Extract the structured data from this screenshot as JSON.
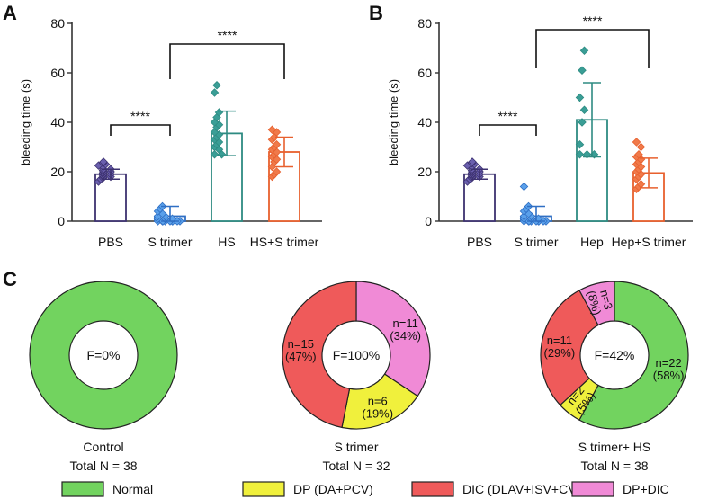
{
  "colors": {
    "axis": "#333333",
    "pbs": "#3d3270",
    "pbs_fill": "#6a5fae",
    "strimer": "#2f6fc4",
    "strimer_fill": "#5aa0ea",
    "hs": "#2e8b82",
    "hs_fill": "#3a9e96",
    "hsst": "#e8602e",
    "hsst_fill": "#f07a4a",
    "normal": "#72d35f",
    "dp": "#f0f03c",
    "dic": "#ef5a5a",
    "dpdic": "#f08ad6"
  },
  "chart_data": [
    {
      "panel": "A",
      "type": "bar",
      "ylabel": "bleeding time (s)",
      "ylim": [
        0,
        80
      ],
      "yticks": [
        0,
        20,
        40,
        60,
        80
      ],
      "categories": [
        "PBS",
        "S trimer",
        "HS",
        "HS+S trimer"
      ],
      "mean": [
        19,
        2,
        35.5,
        28
      ],
      "sd": [
        2,
        4,
        9,
        6
      ],
      "points": [
        [
          16,
          17,
          17.5,
          18,
          18,
          18.5,
          19,
          19,
          19.5,
          20,
          20,
          20.5,
          21,
          21,
          22,
          22.5,
          23,
          23.5,
          24
        ],
        [
          0,
          0,
          0,
          0,
          0,
          0,
          0,
          0,
          0,
          1,
          1,
          1,
          2,
          2,
          3,
          4,
          5,
          6
        ],
        [
          27,
          27,
          29,
          30,
          31,
          32,
          33,
          34,
          35,
          36,
          38,
          39,
          40,
          42,
          44,
          52,
          55
        ],
        [
          18,
          19,
          20,
          22,
          24,
          25,
          26,
          27,
          28,
          29,
          30,
          31,
          33,
          34,
          36,
          37
        ]
      ],
      "significance": [
        {
          "from": "PBS",
          "to": "S trimer",
          "label": "****"
        },
        {
          "from": "S trimer",
          "to": "HS+S trimer",
          "label": "****"
        }
      ]
    },
    {
      "panel": "B",
      "type": "bar",
      "ylabel": "bleeding time (s)",
      "ylim": [
        0,
        80
      ],
      "yticks": [
        0,
        20,
        40,
        60,
        80
      ],
      "categories": [
        "PBS",
        "S trimer",
        "Hep",
        "Hep+S trimer"
      ],
      "mean": [
        19,
        2,
        41,
        19.5
      ],
      "sd": [
        2,
        4,
        15,
        6
      ],
      "points": [
        [
          16,
          17,
          17.5,
          18,
          18,
          18.5,
          19,
          19,
          19.5,
          20,
          20,
          20.5,
          21,
          21,
          22,
          22.5,
          23,
          23.5,
          24
        ],
        [
          0,
          0,
          0,
          0,
          0,
          0,
          0,
          0,
          0,
          1,
          1,
          1,
          2,
          2,
          3,
          4,
          5,
          6,
          14
        ],
        [
          27,
          27,
          27,
          31,
          40,
          45,
          50,
          61,
          69
        ],
        [
          13,
          14,
          15,
          17,
          18,
          19,
          20,
          21,
          22,
          23,
          24,
          25,
          26,
          27,
          30,
          32
        ]
      ],
      "significance": [
        {
          "from": "PBS",
          "to": "S trimer",
          "label": "****"
        },
        {
          "from": "S trimer",
          "to": "Hep+S trimer",
          "label": "****"
        }
      ]
    },
    {
      "panel": "C",
      "type": "pie",
      "donuts": [
        {
          "center_label": "F=0%",
          "title": "Control",
          "total": "Total N = 38",
          "slices": [
            {
              "category": "Normal",
              "value": 38,
              "n_label": "",
              "pct_label": ""
            }
          ]
        },
        {
          "center_label": "F=100%",
          "title": "S trimer",
          "total": "Total N = 32",
          "slices": [
            {
              "category": "DP+DIC",
              "value": 11,
              "n_label": "n=11",
              "pct_label": "(34%)"
            },
            {
              "category": "DP (DA+PCV)",
              "value": 6,
              "n_label": "n=6",
              "pct_label": "(19%)"
            },
            {
              "category": "DIC (DLAV+ISV+CVP)",
              "value": 15,
              "n_label": "n=15",
              "pct_label": "(47%)"
            }
          ]
        },
        {
          "center_label": "F=42%",
          "title": "S trimer+ HS",
          "total": "Total N = 38",
          "slices": [
            {
              "category": "Normal",
              "value": 22,
              "n_label": "n=22",
              "pct_label": "(58%)"
            },
            {
              "category": "DP (DA+PCV)",
              "value": 2,
              "n_label": "n=2",
              "pct_label": "(5%)"
            },
            {
              "category": "DIC (DLAV+ISV+CVP)",
              "value": 11,
              "n_label": "n=11",
              "pct_label": "(29%)"
            },
            {
              "category": "DP+DIC",
              "value": 3,
              "n_label": "n=3",
              "pct_label": "(8%)"
            }
          ]
        }
      ],
      "legend": [
        "Normal",
        "DP (DA+PCV)",
        "DIC (DLAV+ISV+CVP)",
        "DP+DIC"
      ]
    }
  ],
  "panel_letters": [
    "A",
    "B",
    "C"
  ]
}
